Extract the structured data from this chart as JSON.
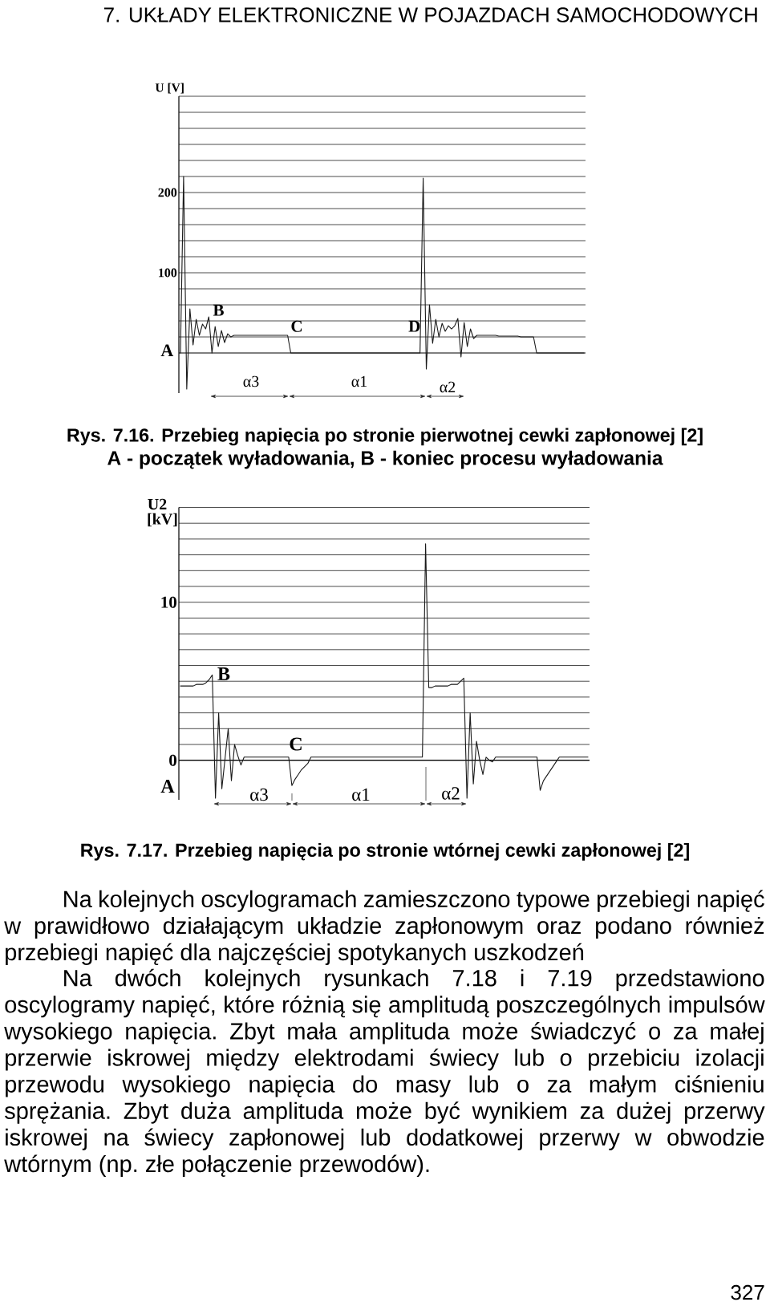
{
  "chart_data": [
    {
      "type": "line",
      "ylabel": "U [V]",
      "categories": [
        null,
        null,
        null,
        null,
        null,
        null,
        null,
        null,
        null,
        null,
        null,
        null,
        null,
        null,
        null,
        null,
        null,
        null,
        null,
        null,
        null,
        null,
        null,
        null,
        null,
        null,
        null,
        null,
        null,
        null,
        null,
        null,
        null,
        null,
        null,
        null,
        null,
        null,
        null,
        null,
        null,
        null,
        null,
        null,
        null,
        null,
        null,
        null,
        null,
        null,
        null,
        null,
        null,
        null,
        null,
        null,
        null,
        null,
        null,
        null,
        null,
        null,
        null,
        null,
        null,
        null,
        null,
        null,
        null,
        null,
        null,
        null,
        null,
        null,
        null,
        null,
        null,
        null,
        null,
        null,
        null,
        null,
        null,
        null,
        null,
        null,
        null,
        null,
        null,
        null,
        null,
        null,
        null,
        null,
        null,
        null,
        null,
        null,
        null,
        null,
        null,
        null,
        null,
        null,
        null,
        null,
        null,
        null,
        null,
        null,
        null,
        null,
        null,
        null,
        null,
        null,
        null,
        null,
        null,
        null,
        null,
        null,
        null,
        null,
        null,
        null,
        null,
        null,
        null
      ],
      "series": [
        {
          "color": "#1a1a1a",
          "values": [
            0,
            220,
            -45,
            55,
            10,
            42,
            22,
            36,
            30,
            45,
            0,
            33,
            8,
            28,
            13,
            24,
            20,
            22,
            22,
            22,
            22,
            22,
            22,
            22,
            22,
            22,
            22,
            22,
            22,
            22,
            22,
            22,
            22,
            22,
            22,
            0,
            0,
            0,
            0,
            0,
            0,
            0,
            0,
            0,
            0,
            0,
            0,
            0,
            0,
            0,
            0,
            0,
            0,
            0,
            0,
            0,
            0,
            0,
            0,
            0,
            0,
            0,
            0,
            0,
            0,
            0,
            0,
            0,
            0,
            0,
            0,
            0,
            0,
            0,
            0,
            0,
            0,
            218,
            -20,
            60,
            12,
            42,
            20,
            37,
            27,
            34,
            30,
            34,
            43,
            -5,
            38,
            8,
            30,
            18,
            22,
            22,
            22,
            22,
            22,
            22,
            22,
            21,
            21,
            21,
            21,
            21,
            21,
            21,
            20,
            20,
            20,
            20,
            20,
            0,
            0,
            0,
            0,
            0,
            0,
            0,
            0,
            0,
            0,
            0,
            0,
            0,
            0,
            0,
            0
          ]
        }
      ],
      "ylim": [
        -50,
        320
      ],
      "yticks": [
        {
          "value": 20,
          "label": null
        },
        {
          "value": 40,
          "label": null
        },
        {
          "value": 60,
          "label": null
        },
        {
          "value": 80,
          "label": null
        },
        100,
        {
          "value": 120,
          "label": null
        },
        {
          "value": 140,
          "label": null
        },
        {
          "value": 160,
          "label": null
        },
        {
          "value": 180,
          "label": null
        },
        200,
        {
          "value": 220,
          "label": null
        },
        {
          "value": 240,
          "label": null
        },
        {
          "value": 260,
          "label": null
        },
        {
          "value": 280,
          "label": null
        },
        {
          "value": 300,
          "label": null
        },
        {
          "value": 320,
          "label": null
        }
      ],
      "grid": "y",
      "tick_labels": "y",
      "annotations": [
        "7. UKŁADY ELEKTRONICZNE W POJAZDACH SAMOCHODOWYCH",
        "A",
        "B",
        "C",
        "D",
        "α3",
        "α1",
        "α2",
        "Rys. 7.16. Przebieg napięcia po stronie pierwotnej cewki zapłonowej [2]",
        "A - początek wyładowania, B - koniec procesu wyładowania"
      ]
    },
    {
      "type": "line",
      "ylabel": "U2 [kV]",
      "categories": [
        null,
        null,
        null,
        null,
        null,
        null,
        null,
        null,
        null,
        null,
        null,
        null,
        null,
        null,
        null,
        null,
        null,
        null,
        null,
        null,
        null,
        null,
        null,
        null,
        null,
        null,
        null,
        null,
        null,
        null,
        null,
        null,
        null,
        null,
        null,
        null,
        null,
        null,
        null,
        null,
        null,
        null,
        null,
        null,
        null,
        null,
        null,
        null,
        null,
        null,
        null,
        null,
        null,
        null,
        null,
        null,
        null,
        null,
        null,
        null,
        null,
        null,
        null,
        null,
        null,
        null,
        null,
        null,
        null,
        null,
        null,
        null,
        null,
        null,
        null,
        null,
        null,
        null,
        null,
        null,
        null,
        null,
        null,
        null,
        null,
        null,
        null,
        null,
        null,
        null,
        null,
        null,
        null,
        null,
        null,
        null,
        null,
        null,
        null,
        null,
        null,
        null,
        null,
        null,
        null,
        null,
        null,
        null,
        null,
        null,
        null,
        null,
        null,
        null,
        null,
        null,
        null,
        null,
        null,
        null,
        null,
        null,
        null,
        null,
        null,
        null,
        null,
        null,
        null
      ],
      "series": [
        {
          "color": "#1a1a1a",
          "values": [
            4.7,
            4.7,
            4.7,
            4.7,
            4.7,
            4.8,
            4.8,
            4.8,
            4.9,
            5.1,
            5.4,
            -2.4,
            3.0,
            -1.8,
            0.1,
            2.0,
            -1.3,
            1.0,
            0.3,
            -0.3,
            0.2,
            0.2,
            0.2,
            0.2,
            0.2,
            0.2,
            0.2,
            0.2,
            0.2,
            0.2,
            0.2,
            0.2,
            0.2,
            0.2,
            0.2,
            -1.6,
            -1.2,
            -0.9,
            -0.6,
            -0.4,
            -0.2,
            0.2,
            0.2,
            0.2,
            0.2,
            0.2,
            0.2,
            0.2,
            0.2,
            0.2,
            0.2,
            0.2,
            0.2,
            0.2,
            0.2,
            0.2,
            0.2,
            0.2,
            0.2,
            0.2,
            0.2,
            0.2,
            0.2,
            0.2,
            0.2,
            0.2,
            0.2,
            0.2,
            0.2,
            0.2,
            0.2,
            0.2,
            0.2,
            0.2,
            0.2,
            0.2,
            0.2,
            13.7,
            4.6,
            4.6,
            4.7,
            4.7,
            4.7,
            4.7,
            4.7,
            4.8,
            4.8,
            4.8,
            5.0,
            5.2,
            -2.4,
            3.0,
            -1.5,
            1.2,
            0.0,
            -0.9,
            0.2,
            0.0,
            -0.1,
            0.2,
            0.2,
            0.2,
            0.2,
            0.2,
            0.2,
            0.2,
            0.2,
            0.2,
            0.2,
            0.2,
            0.2,
            0.2,
            0.2,
            -1.9,
            -1.3,
            -1.0,
            -0.7,
            -0.4,
            -0.1,
            0.2,
            0.2,
            0.2,
            0.2,
            0.2,
            0.2,
            0.2,
            0.2,
            0.2,
            0.2
          ]
        }
      ],
      "ylim": [
        -2.5,
        16
      ],
      "yticks": [
        0,
        {
          "value": 1,
          "label": null
        },
        {
          "value": 2,
          "label": null
        },
        {
          "value": 3,
          "label": null
        },
        {
          "value": 4,
          "label": null
        },
        {
          "value": 5,
          "label": null
        },
        {
          "value": 6,
          "label": null
        },
        {
          "value": 7,
          "label": null
        },
        {
          "value": 8,
          "label": null
        },
        {
          "value": 9,
          "label": null
        },
        10,
        {
          "value": 11,
          "label": null
        },
        {
          "value": 12,
          "label": null
        },
        {
          "value": 13,
          "label": null
        },
        {
          "value": 14,
          "label": null
        },
        {
          "value": 15,
          "label": null
        },
        {
          "value": 16,
          "label": null
        }
      ],
      "grid": "y",
      "tick_labels": "y",
      "annotations": [
        "A",
        "B",
        "C",
        "α3",
        "α1",
        "α2",
        "Rys. 7.17. Przebieg napięcia po stronie wtórnej cewki zapłonowej [2]",
        "Na kolejnych oscylogramach zamieszczono typowe przebiegi napięć w prawidłowo działającym układzie zapłonowym oraz podano również przebiegi napięć dla najczęściej spotykanych uszkodzeń",
        "Na dwóch kolejnych rysunkach 7.18 i 7.19 przedstawiono oscylogramy napięć, które różnią się amplitudą poszczególnych impulsów wysokiego napięcia. Zbyt mała amplituda może świadczyć o za małej przerwie iskrowej między elektrodami świecy lub o przebiciu izolacji przewodu wysokiego napięcia do masy lub o za małym ciśnieniu sprężania. Zbyt duża amplituda może być wynikiem za dużej przerwy iskrowej na świecy zapłonowej lub dodatkowej przerwy w obwodzie wtórnym (np. złe połączenie przewodów).",
        "327"
      ]
    }
  ]
}
